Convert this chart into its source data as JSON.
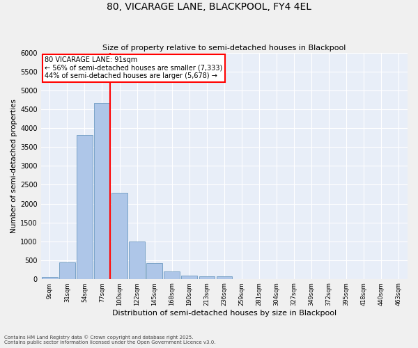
{
  "title1": "80, VICARAGE LANE, BLACKPOOL, FY4 4EL",
  "title2": "Size of property relative to semi-detached houses in Blackpool",
  "xlabel": "Distribution of semi-detached houses by size in Blackpool",
  "ylabel": "Number of semi-detached properties",
  "bins": [
    "9sqm",
    "31sqm",
    "54sqm",
    "77sqm",
    "100sqm",
    "122sqm",
    "145sqm",
    "168sqm",
    "190sqm",
    "213sqm",
    "236sqm",
    "259sqm",
    "281sqm",
    "304sqm",
    "327sqm",
    "349sqm",
    "372sqm",
    "395sqm",
    "418sqm",
    "440sqm",
    "463sqm"
  ],
  "values": [
    50,
    430,
    3820,
    4680,
    2290,
    990,
    415,
    195,
    85,
    65,
    60,
    0,
    0,
    0,
    0,
    0,
    0,
    0,
    0,
    0,
    0
  ],
  "bar_color": "#aec6e8",
  "bar_edge_color": "#5b8db8",
  "vline_color": "red",
  "annotation_title": "80 VICARAGE LANE: 91sqm",
  "annotation_line1": "← 56% of semi-detached houses are smaller (7,333)",
  "annotation_line2": "44% of semi-detached houses are larger (5,678) →",
  "ylim": [
    0,
    6000
  ],
  "yticks": [
    0,
    500,
    1000,
    1500,
    2000,
    2500,
    3000,
    3500,
    4000,
    4500,
    5000,
    5500,
    6000
  ],
  "background_color": "#e8eef8",
  "grid_color": "#ffffff",
  "fig_background": "#f0f0f0",
  "footer1": "Contains HM Land Registry data © Crown copyright and database right 2025.",
  "footer2": "Contains public sector information licensed under the Open Government Licence v3.0."
}
